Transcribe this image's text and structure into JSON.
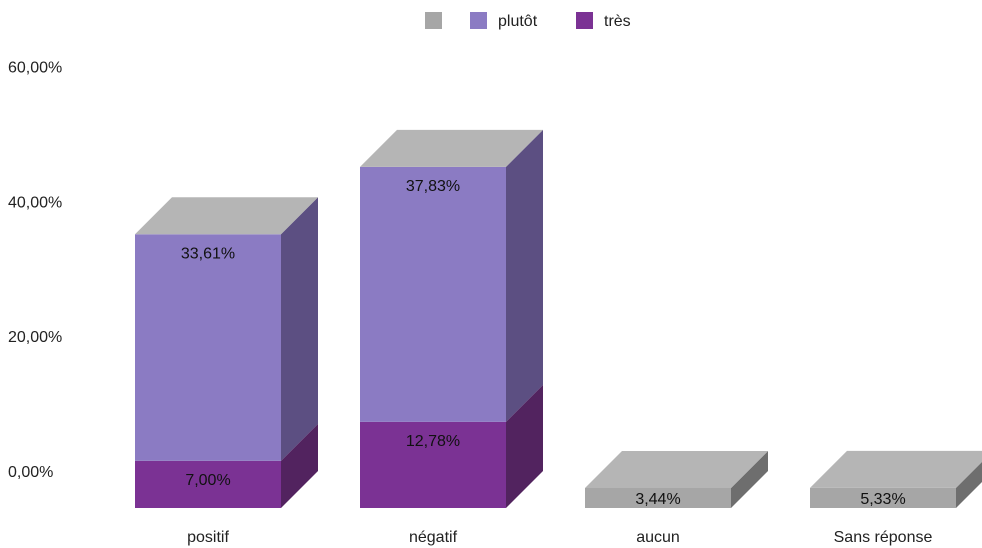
{
  "chart_data": {
    "type": "bar",
    "stacked": true,
    "three_d": true,
    "categories": [
      "positif",
      "négatif",
      "aucun",
      "Sans réponse"
    ],
    "series": [
      {
        "name": "",
        "color": "#a6a6a6",
        "values": [
          null,
          null,
          3.44,
          5.33
        ],
        "labels": [
          "",
          "",
          "3,44%",
          "5,33%"
        ]
      },
      {
        "name": "plutôt",
        "color": "#8b7bc3",
        "values": [
          33.61,
          37.83,
          null,
          null
        ],
        "labels": [
          "33,61%",
          "37,83%",
          "",
          ""
        ]
      },
      {
        "name": "très",
        "color": "#7b3294",
        "values": [
          7.0,
          12.78,
          null,
          null
        ],
        "labels": [
          "7,00%",
          "12,78%",
          "",
          ""
        ]
      }
    ],
    "stack_order": [
      "très",
      "plutôt",
      ""
    ],
    "ylim": [
      0,
      60
    ],
    "yticks": [
      {
        "value": 0,
        "label": "0,00%"
      },
      {
        "value": 20,
        "label": "20,00%"
      },
      {
        "value": 40,
        "label": "40,00%"
      },
      {
        "value": 60,
        "label": "60,00%"
      }
    ],
    "legend_placement": "top-center",
    "legend_order": [
      "",
      "plutôt",
      "très"
    ],
    "grid": false,
    "top_face_color": "#b5b5b5",
    "side_colors": {
      "très": "#52235f",
      "plutôt": "#5c4f82",
      "": "#6e6e6e"
    }
  }
}
